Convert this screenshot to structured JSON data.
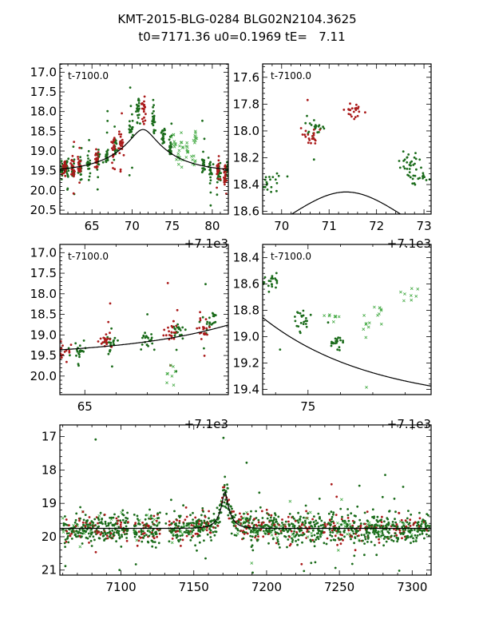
{
  "chart_data": [
    {
      "type": "scatter",
      "panel": "peak-wide",
      "title": "",
      "annotation": "t-7100.0",
      "x_offset_label": "+7.1e3",
      "xlim": [
        61.0,
        82.0
      ],
      "ylim": [
        20.6,
        16.79
      ],
      "y_inverted": true,
      "xticks": [
        65,
        70,
        75,
        80
      ],
      "xtick_labels": [
        "65",
        "70",
        "75",
        "80"
      ],
      "yticks": [
        17.0,
        17.5,
        18.0,
        18.5,
        19.0,
        19.5,
        20.0,
        20.5
      ],
      "ytick_labels": [
        "17.0",
        "17.5",
        "18.0",
        "18.5",
        "19.0",
        "19.5",
        "20.0",
        "20.5"
      ],
      "model": {
        "t0": 71.36,
        "u0": 0.1969,
        "tE": 7.11,
        "baseline_mag": 19.55
      },
      "series": [
        {
          "name": "green-dots",
          "marker": "dot",
          "color": "#1a6b1a",
          "clusters": [
            [
              61.3,
              19.5
            ],
            [
              61.9,
              19.45
            ],
            [
              62.7,
              19.45
            ],
            [
              63.6,
              19.4
            ],
            [
              64.6,
              19.35
            ],
            [
              65.8,
              19.15
            ],
            [
              66.9,
              19.1
            ],
            [
              67.9,
              18.85
            ],
            [
              69.8,
              18.4
            ],
            [
              70.8,
              17.95
            ],
            [
              72.7,
              18.2
            ],
            [
              73.9,
              18.6
            ],
            [
              74.8,
              18.9
            ],
            [
              78.9,
              19.35
            ],
            [
              79.8,
              19.45
            ],
            [
              80.8,
              19.5
            ],
            [
              81.8,
              19.5
            ]
          ]
        },
        {
          "name": "red-dots",
          "marker": "dot",
          "color": "#aa1a1a",
          "clusters": [
            [
              61.6,
              19.45
            ],
            [
              62.6,
              19.45
            ],
            [
              63.5,
              19.4
            ],
            [
              65.6,
              19.2
            ],
            [
              67.7,
              18.9
            ],
            [
              68.6,
              18.85
            ],
            [
              71.5,
              17.9
            ],
            [
              80.7,
              19.45
            ],
            [
              81.6,
              19.6
            ]
          ]
        },
        {
          "name": "green-crosses",
          "marker": "x",
          "color": "#44aa44",
          "clusters": [
            [
              75.8,
              19.2
            ],
            [
              76.8,
              19.0
            ],
            [
              77.7,
              19.2
            ],
            [
              75.2,
              18.8
            ],
            [
              76.2,
              18.9
            ],
            [
              77.9,
              18.6
            ]
          ]
        }
      ]
    },
    {
      "type": "scatter",
      "panel": "peak-zoom",
      "annotation": "t-7100.0",
      "x_offset_label": "+7.1e3",
      "xlim": [
        69.6,
        73.15
      ],
      "ylim": [
        18.62,
        17.5
      ],
      "y_inverted": true,
      "xticks": [
        70,
        71,
        72,
        73
      ],
      "xtick_labels": [
        "70",
        "71",
        "72",
        "73"
      ],
      "yticks": [
        17.6,
        17.8,
        18.0,
        18.2,
        18.4,
        18.6
      ],
      "ytick_labels": [
        "17.6",
        "17.8",
        "18.0",
        "18.2",
        "18.4",
        "18.6"
      ],
      "model": {
        "t0": 71.36,
        "u0": 0.1969,
        "tE": 7.11,
        "baseline_mag": 19.55
      },
      "series": [
        {
          "name": "green-dots",
          "marker": "dot",
          "color": "#1a6b1a",
          "clusters": [
            [
              69.75,
              18.38
            ],
            [
              70.75,
              17.97
            ],
            [
              72.7,
              18.22
            ],
            [
              72.85,
              18.35
            ]
          ]
        },
        {
          "name": "red-dots",
          "marker": "dot",
          "color": "#aa1a1a",
          "clusters": [
            [
              70.6,
              18.05
            ],
            [
              71.5,
              17.85
            ]
          ]
        }
      ]
    },
    {
      "type": "scatter",
      "panel": "rise",
      "annotation": "t-7100.0",
      "x_offset_label": "+7.1e3",
      "xlim": [
        64.2,
        69.6
      ],
      "ylim": [
        20.45,
        16.8
      ],
      "y_inverted": true,
      "xticks": [
        65
      ],
      "xtick_labels": [
        "65"
      ],
      "yticks": [
        17.0,
        17.5,
        18.0,
        18.5,
        19.0,
        19.5,
        20.0
      ],
      "ytick_labels": [
        "17.0",
        "17.5",
        "18.0",
        "18.5",
        "19.0",
        "19.5",
        "20.0"
      ],
      "model": {
        "t0": 71.36,
        "u0": 0.1969,
        "tE": 7.11,
        "baseline_mag": 19.55
      },
      "series": [
        {
          "name": "green-dots",
          "marker": "dot",
          "color": "#1a6b1a",
          "clusters": [
            [
              64.8,
              19.35
            ],
            [
              65.9,
              19.2
            ],
            [
              67.0,
              19.15
            ],
            [
              68.0,
              18.95
            ],
            [
              69.0,
              18.7
            ]
          ]
        },
        {
          "name": "red-dots",
          "marker": "dot",
          "color": "#aa1a1a",
          "clusters": [
            [
              64.3,
              19.4
            ],
            [
              65.7,
              19.15
            ],
            [
              67.8,
              18.9
            ],
            [
              68.8,
              18.85
            ]
          ]
        },
        {
          "name": "green-crosses",
          "marker": "x",
          "color": "#44aa44",
          "clusters": [
            [
              67.85,
              20.0
            ]
          ]
        }
      ]
    },
    {
      "type": "scatter",
      "panel": "decline",
      "annotation": "t-7100.0",
      "x_offset_label": "+7.1e3",
      "xlim": [
        73.6,
        78.8
      ],
      "ylim": [
        19.44,
        18.3
      ],
      "y_inverted": true,
      "xticks": [
        75
      ],
      "xtick_labels": [
        "75"
      ],
      "yticks": [
        18.4,
        18.6,
        18.8,
        19.0,
        19.2,
        19.4
      ],
      "ytick_labels": [
        "18.4",
        "18.6",
        "18.8",
        "19.0",
        "19.2",
        "19.4"
      ],
      "model": {
        "t0": 71.36,
        "u0": 0.1969,
        "tE": 7.11,
        "baseline_mag": 19.55
      },
      "series": [
        {
          "name": "green-dots",
          "marker": "dot",
          "color": "#1a6b1a",
          "clusters": [
            [
              73.9,
              18.6
            ],
            [
              74.8,
              18.88
            ],
            [
              75.9,
              19.05
            ]
          ]
        },
        {
          "name": "green-crosses",
          "marker": "x",
          "color": "#44aa44",
          "clusters": [
            [
              75.8,
              18.85
            ],
            [
              76.8,
              18.9
            ],
            [
              77.2,
              18.8
            ],
            [
              78.1,
              18.7
            ]
          ]
        }
      ]
    },
    {
      "type": "scatter",
      "panel": "full-season",
      "annotation": "",
      "x_offset_label": "",
      "xlim": [
        7058,
        7313
      ],
      "ylim": [
        21.15,
        16.65
      ],
      "y_inverted": true,
      "xticks": [
        7100,
        7150,
        7200,
        7250,
        7300
      ],
      "xtick_labels": [
        "7100",
        "7150",
        "7200",
        "7250",
        "7300"
      ],
      "yticks": [
        17,
        18,
        19,
        20,
        21
      ],
      "ytick_labels": [
        "17",
        "18",
        "19",
        "20",
        "21"
      ],
      "model": {
        "t0": 7171.36,
        "u0": 0.1969,
        "tE": 7.11,
        "baseline_mag": 19.55
      },
      "baseline_mag": 19.75,
      "peak": {
        "t": 7171.36,
        "mag": 17.85
      },
      "series": [
        {
          "name": "green-dots",
          "marker": "dot",
          "color": "#1a6b1a"
        },
        {
          "name": "red-dots",
          "marker": "dot",
          "color": "#aa1a1a"
        },
        {
          "name": "green-crosses",
          "marker": "x",
          "color": "#44aa44"
        }
      ]
    }
  ],
  "figure": {
    "title_line1": "KMT-2015-BLG-0284 BLG02N2104.3625",
    "title_line2": "t0=7171.36 u0=0.1969 tE=   7.11"
  }
}
